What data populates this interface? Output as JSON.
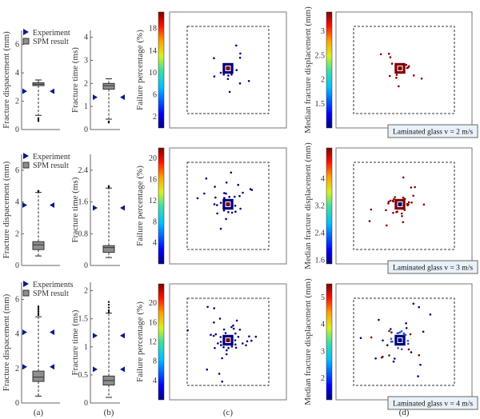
{
  "chart_data": [
    {
      "id": "a1",
      "type": "box",
      "row": 1,
      "column": "a",
      "ylabel": "Fracture dispacement (mm)",
      "ylim": [
        0,
        7
      ],
      "yticks": [
        0,
        2,
        4,
        6
      ],
      "legend": [
        "Experiment",
        "SPM result"
      ],
      "legend_position": "top-left",
      "experiment_values": [
        2.7
      ],
      "box": {
        "whisker_low": 1.0,
        "q1": 3.1,
        "median": 3.2,
        "q3": 3.3,
        "whisker_high": 3.5,
        "outliers": [
          0.6,
          0.7,
          0.8
        ]
      }
    },
    {
      "id": "b1",
      "type": "box",
      "row": 1,
      "column": "b",
      "ylabel": "Fracture time (ms)",
      "ylim": [
        0,
        4.3
      ],
      "yticks": [
        0,
        1,
        2,
        3,
        4
      ],
      "experiment_values": [
        1.4
      ],
      "box": {
        "whisker_low": 0.45,
        "q1": 1.75,
        "median": 1.9,
        "q3": 2.0,
        "whisker_high": 2.2,
        "outliers": [
          0.3,
          0.35
        ]
      }
    },
    {
      "id": "c1",
      "type": "heatmap",
      "row": 1,
      "column": "c",
      "colorbar_label": "Failure percentage (%)",
      "colorbar_range": [
        0,
        21
      ],
      "colorbar_ticks": [
        2,
        6,
        10,
        14,
        18
      ],
      "colormap": "jet",
      "dominant_color": "low",
      "center_color": "high"
    },
    {
      "id": "d1",
      "type": "heatmap",
      "row": 1,
      "column": "d",
      "colorbar_label": "Median fracture displacement (mm)",
      "colorbar_range": [
        1.0,
        3.4
      ],
      "colorbar_ticks": [
        1.5,
        2,
        2.5,
        3
      ],
      "colormap": "jet",
      "dominant_color": "high",
      "center_color": "high",
      "annotation": "Laminated glass v = 2 m/s"
    },
    {
      "id": "a2",
      "type": "box",
      "row": 2,
      "column": "a",
      "ylabel": "Fracture dispacement (mm)",
      "ylim": [
        0,
        7
      ],
      "yticks": [
        0,
        2,
        4,
        6
      ],
      "legend": [
        "Experiment",
        "SPM result"
      ],
      "legend_position": "top-left",
      "experiment_values": [
        3.8
      ],
      "box": {
        "whisker_low": 0.6,
        "q1": 1.0,
        "median": 1.3,
        "q3": 1.5,
        "whisker_high": 4.6,
        "outliers": [
          4.65,
          4.7
        ]
      }
    },
    {
      "id": "b2",
      "type": "box",
      "row": 2,
      "column": "b",
      "ylabel": "Fracture time (ms)",
      "ylim": [
        0,
        2.8
      ],
      "yticks": [
        0,
        0.8,
        1.6,
        2.4
      ],
      "experiment_values": [
        1.45
      ],
      "box": {
        "whisker_low": 0.2,
        "q1": 0.33,
        "median": 0.45,
        "q3": 0.5,
        "whisker_high": 1.95,
        "outliers": [
          1.97,
          2.0
        ]
      }
    },
    {
      "id": "c2",
      "type": "heatmap",
      "row": 2,
      "column": "c",
      "colorbar_label": "Failure percentage (%)",
      "colorbar_range": [
        0,
        22
      ],
      "colorbar_ticks": [
        4,
        8,
        12,
        16,
        20
      ],
      "colormap": "jet",
      "dominant_color": "low",
      "center_color": "high"
    },
    {
      "id": "d2",
      "type": "heatmap",
      "row": 2,
      "column": "d",
      "colorbar_label": "Median fracture displacement (mm)",
      "colorbar_range": [
        1.5,
        4.9
      ],
      "colorbar_ticks": [
        1.6,
        2.4,
        3.2,
        4
      ],
      "colormap": "jet",
      "dominant_color": "high",
      "center_color": "low",
      "annotation": "Laminated glass v = 3 m/s"
    },
    {
      "id": "a3",
      "type": "box",
      "row": 3,
      "column": "a",
      "ylabel": "Fracture dispacement (mm)",
      "ylim": [
        0,
        7
      ],
      "yticks": [
        0,
        2,
        4,
        6
      ],
      "legend": [
        "Experiments",
        "SPM result"
      ],
      "legend_position": "top-left",
      "experiment_values": [
        2.1,
        4.1
      ],
      "box": {
        "whisker_low": 0.4,
        "q1": 1.25,
        "median": 1.5,
        "q3": 1.85,
        "whisker_high": 5.0,
        "outliers": [
          5.1,
          5.2,
          5.3,
          5.4,
          5.5,
          5.6
        ]
      }
    },
    {
      "id": "b3",
      "type": "box",
      "row": 3,
      "column": "b",
      "ylabel": "Fracture time (ms)",
      "ylim": [
        0,
        2.15
      ],
      "yticks": [
        0,
        0.5,
        1,
        1.5,
        2
      ],
      "experiment_values": [
        0.6,
        1.2
      ],
      "box": {
        "whisker_low": 0.1,
        "q1": 0.32,
        "median": 0.4,
        "q3": 0.48,
        "whisker_high": 1.6,
        "outliers": [
          1.62,
          1.65,
          1.7,
          1.75,
          1.8
        ]
      }
    },
    {
      "id": "c3",
      "type": "heatmap",
      "row": 3,
      "column": "c",
      "colorbar_label": "Failure percentage (%)",
      "colorbar_range": [
        0,
        24
      ],
      "colorbar_ticks": [
        4,
        8,
        12,
        16,
        20
      ],
      "colormap": "jet",
      "dominant_color": "low",
      "center_color": "high"
    },
    {
      "id": "d3",
      "type": "heatmap",
      "row": 3,
      "column": "d",
      "colorbar_label": "Median fracture displacement (mm)",
      "colorbar_range": [
        1.2,
        5.5
      ],
      "colorbar_ticks": [
        2,
        3,
        4,
        5
      ],
      "colormap": "jet",
      "dominant_color": "mixed",
      "center_color": "low",
      "annotation": "Laminated glass v = 4 m/s"
    }
  ],
  "panel_labels": [
    "(a)",
    "(b)",
    "(c)",
    "(d)"
  ],
  "colors": {
    "experiment_marker": "#0a1a8c",
    "box_fill": "#8e8e8e",
    "jet_low": "#00008f",
    "jet_high": "#7f0000",
    "annotation_bg": "#e8f1f7"
  }
}
